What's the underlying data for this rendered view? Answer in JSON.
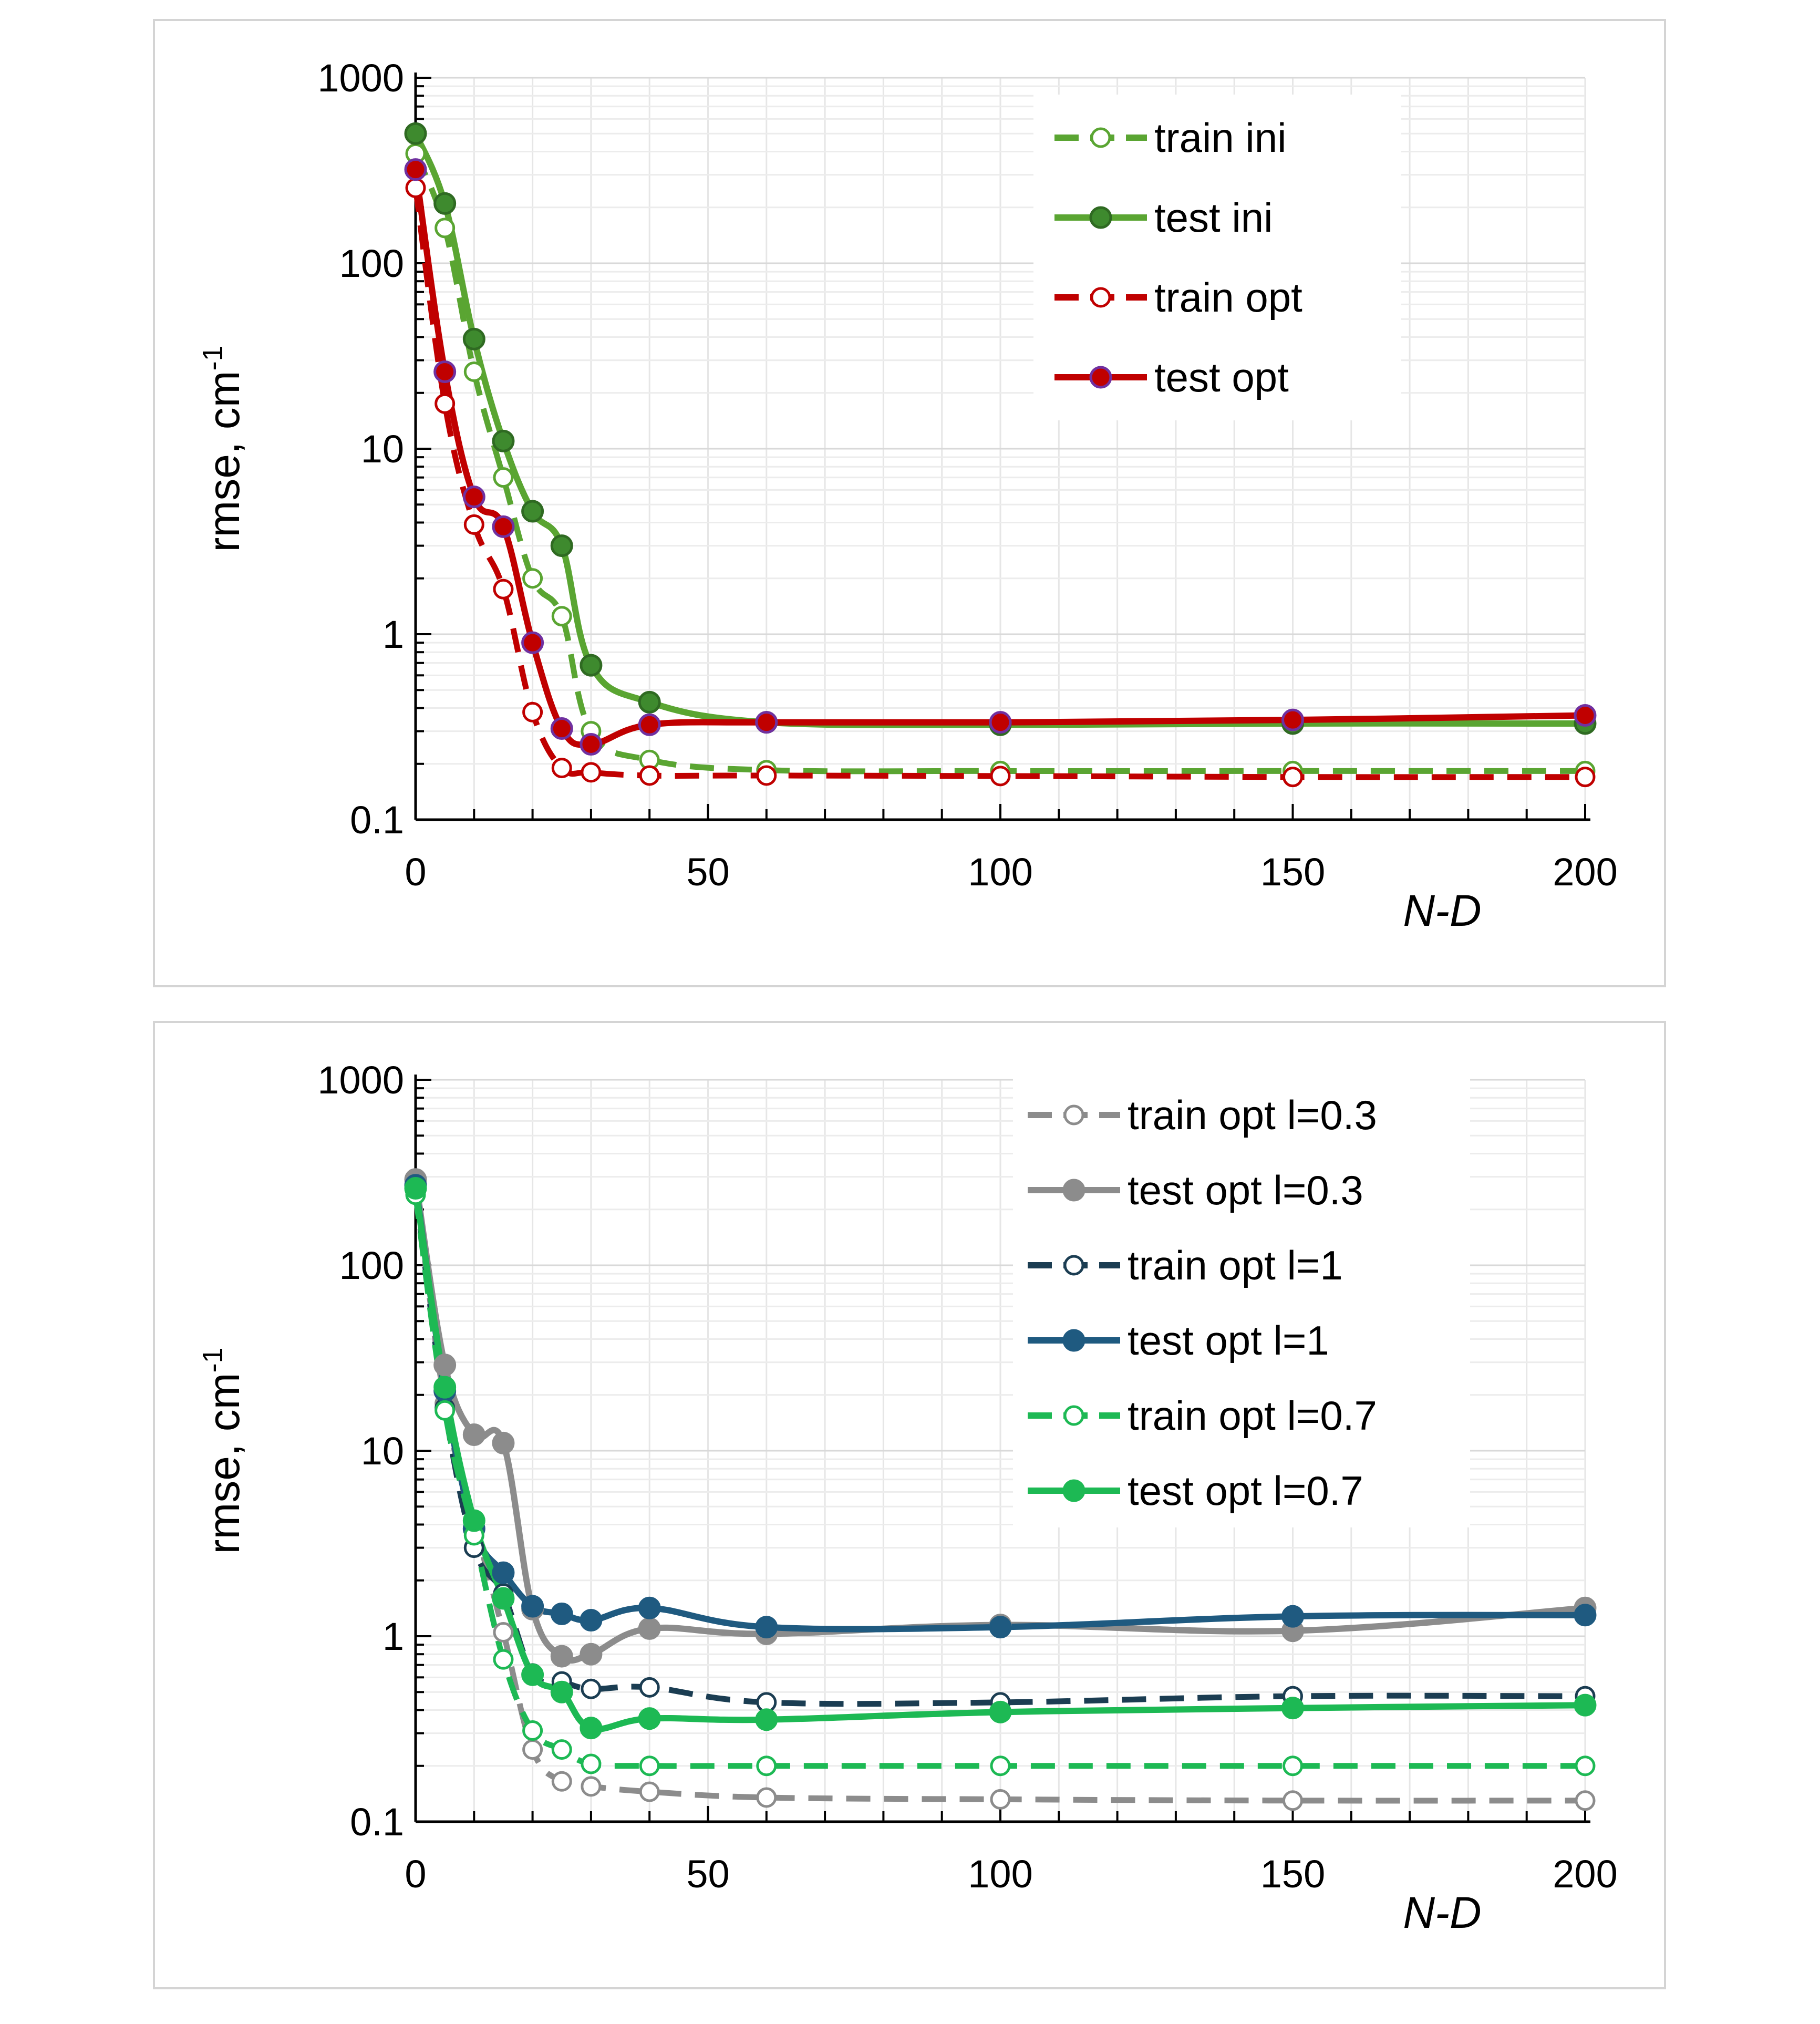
{
  "chart_data": [
    {
      "type": "line",
      "xlabel": "N-D",
      "ylabel": "rmse, cm",
      "ylabel_superscript": "-1",
      "yscale": "log",
      "xlim": [
        0,
        200
      ],
      "ylim": [
        0.1,
        1000
      ],
      "x_ticks": [
        "0",
        "50",
        "100",
        "150",
        "200"
      ],
      "y_ticks": [
        "0.1",
        "1",
        "10",
        "100",
        "1000"
      ],
      "legend_position": "top-right",
      "series": [
        {
          "name": "train ini",
          "color": "#5aa532",
          "dash": true,
          "marker": "open",
          "x": [
            0,
            5,
            10,
            15,
            20,
            25,
            30,
            40,
            60,
            100,
            150,
            200
          ],
          "y": [
            390,
            155,
            26,
            7,
            2.0,
            1.25,
            0.3,
            0.21,
            0.185,
            0.183,
            0.183,
            0.183
          ]
        },
        {
          "name": "test ini",
          "color": "#5aa532",
          "dash": false,
          "marker": "filled",
          "markerFill": "#3e8a2e",
          "markerStroke": "#2f6a22",
          "x": [
            0,
            5,
            10,
            15,
            20,
            25,
            30,
            40,
            60,
            100,
            150,
            200
          ],
          "y": [
            500,
            210,
            39,
            11,
            4.6,
            3.0,
            0.68,
            0.43,
            0.335,
            0.325,
            0.33,
            0.33
          ]
        },
        {
          "name": "train opt",
          "color": "#c00000",
          "dash": true,
          "marker": "open",
          "x": [
            0,
            5,
            10,
            15,
            20,
            25,
            30,
            40,
            60,
            100,
            150,
            200
          ],
          "y": [
            255,
            17.5,
            3.9,
            1.75,
            0.38,
            0.19,
            0.18,
            0.173,
            0.173,
            0.172,
            0.17,
            0.17
          ]
        },
        {
          "name": "test opt",
          "color": "#c00000",
          "dash": false,
          "marker": "filled",
          "markerFill": "#c00000",
          "markerStroke": "#7030a0",
          "x": [
            0,
            5,
            10,
            15,
            20,
            25,
            30,
            40,
            60,
            100,
            150,
            200
          ],
          "y": [
            320,
            26,
            5.5,
            3.8,
            0.9,
            0.31,
            0.255,
            0.325,
            0.335,
            0.335,
            0.345,
            0.365
          ]
        }
      ]
    },
    {
      "type": "line",
      "xlabel": "N-D",
      "ylabel": "rmse, cm",
      "ylabel_superscript": "-1",
      "yscale": "log",
      "xlim": [
        0,
        200
      ],
      "ylim": [
        0.1,
        1000
      ],
      "x_ticks": [
        "0",
        "50",
        "100",
        "150",
        "200"
      ],
      "y_ticks": [
        "0.1",
        "1",
        "10",
        "100",
        "1000"
      ],
      "legend_position": "top-right",
      "series": [
        {
          "name": "train opt l=0.3",
          "color": "#8c8c8c",
          "dash": true,
          "marker": "open",
          "x": [
            0,
            5,
            10,
            15,
            20,
            25,
            30,
            40,
            60,
            100,
            150,
            200
          ],
          "y": [
            270,
            18,
            4.2,
            1.05,
            0.245,
            0.165,
            0.155,
            0.145,
            0.135,
            0.132,
            0.13,
            0.13
          ]
        },
        {
          "name": "test opt l=0.3",
          "color": "#8c8c8c",
          "dash": false,
          "marker": "filled",
          "markerFill": "#8c8c8c",
          "markerStroke": "#8c8c8c",
          "x": [
            0,
            5,
            10,
            15,
            20,
            25,
            30,
            40,
            60,
            100,
            150,
            200
          ],
          "y": [
            290,
            29,
            12.2,
            11,
            1.4,
            0.78,
            0.8,
            1.1,
            1.03,
            1.15,
            1.07,
            1.42
          ]
        },
        {
          "name": "train opt l=1",
          "color": "#1b3d52",
          "dash": true,
          "marker": "open",
          "x": [
            0,
            5,
            10,
            15,
            20,
            25,
            30,
            40,
            60,
            100,
            150,
            200
          ],
          "y": [
            250,
            17,
            3.0,
            1.7,
            0.63,
            0.57,
            0.52,
            0.53,
            0.44,
            0.44,
            0.475,
            0.475
          ]
        },
        {
          "name": "test opt l=1",
          "color": "#1f5a80",
          "dash": false,
          "marker": "filled",
          "markerFill": "#1f5a80",
          "markerStroke": "#1f5a80",
          "x": [
            0,
            5,
            10,
            15,
            20,
            25,
            30,
            40,
            60,
            100,
            150,
            200
          ],
          "y": [
            270,
            21,
            3.8,
            2.2,
            1.45,
            1.32,
            1.22,
            1.42,
            1.12,
            1.12,
            1.28,
            1.3
          ]
        },
        {
          "name": "train opt l=0.7",
          "color": "#1db954",
          "dash": true,
          "marker": "open",
          "x": [
            0,
            5,
            10,
            15,
            20,
            25,
            30,
            40,
            60,
            100,
            150,
            200
          ],
          "y": [
            240,
            16.5,
            3.5,
            0.75,
            0.31,
            0.245,
            0.205,
            0.2,
            0.2,
            0.2,
            0.2,
            0.2
          ]
        },
        {
          "name": "test opt l=0.7",
          "color": "#1db954",
          "dash": false,
          "marker": "filled",
          "markerFill": "#1db954",
          "markerStroke": "#1db954",
          "x": [
            0,
            5,
            10,
            15,
            20,
            25,
            30,
            40,
            60,
            100,
            150,
            200
          ],
          "y": [
            260,
            22,
            4.2,
            1.6,
            0.62,
            0.5,
            0.32,
            0.36,
            0.355,
            0.39,
            0.41,
            0.425
          ]
        }
      ]
    }
  ]
}
